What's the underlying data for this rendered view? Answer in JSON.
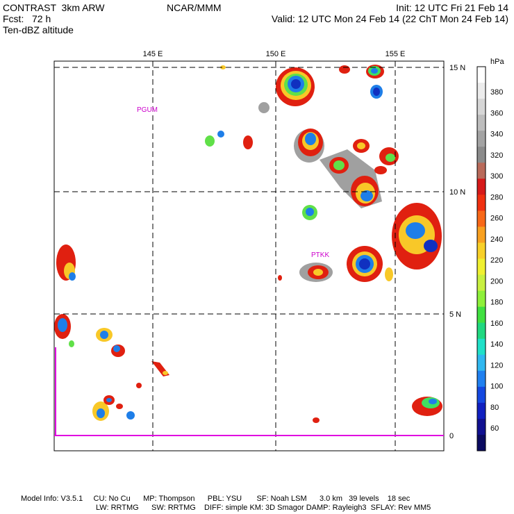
{
  "header": {
    "line1_left": "CONTRAST  3km ARW",
    "line1_center": "NCAR/MMM",
    "line1_right": "Init: 12 UTC Fri 21 Feb 14",
    "line2_left": "Fcst:   72 h",
    "line2_right": "Valid: 12 UTC Mon 24 Feb 14 (22 ChT Mon 24 Feb 14)",
    "line3_left": "Ten-dBZ altitude"
  },
  "map": {
    "lon_labels": [
      "145 E",
      "150 E",
      "155 E"
    ],
    "lat_labels": [
      "15 N",
      "10 N",
      "5 N",
      "0"
    ],
    "stations": [
      "PGUM",
      "PTKK"
    ]
  },
  "colorbar": {
    "unit": "hPa",
    "labels": [
      "380",
      "360",
      "340",
      "320",
      "300",
      "280",
      "260",
      "240",
      "220",
      "200",
      "180",
      "160",
      "140",
      "120",
      "100",
      "80",
      "60"
    ],
    "colors": [
      "#ffffff",
      "#ececec",
      "#d6d6d6",
      "#bdbdbd",
      "#a3a3a3",
      "#8b8b8b",
      "#b96a5a",
      "#d61a1a",
      "#f03010",
      "#f86818",
      "#f8a020",
      "#f8d028",
      "#f0f030",
      "#c8f040",
      "#8ef03a",
      "#40e040",
      "#20d880",
      "#20e0c8",
      "#30b8f0",
      "#2080f0",
      "#1448e0",
      "#1020c0",
      "#101090",
      "#0a0a60"
    ]
  },
  "footer": {
    "line1": "Model Info: V3.5.1     CU: No Cu      MP: Thompson      PBL: YSU       SF: Noah LSM      3.0 km   39 levels    18 sec",
    "line2": "LW: RRTMG      SW: RRTMG    DIFF: simple KM: 3D Smagor DAMP: Rayleigh3  SFLAY: Rev MM5"
  }
}
